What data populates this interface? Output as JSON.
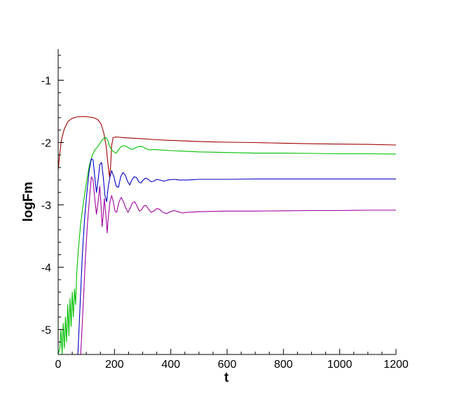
{
  "chart_data": {
    "type": "line",
    "xlabel": "t",
    "ylabel": "logFm",
    "xlim": [
      0,
      1200
    ],
    "ylim": [
      -5.4,
      -0.5
    ],
    "x_ticks": [
      0,
      200,
      400,
      600,
      800,
      1000,
      1200
    ],
    "x_tick_labels": [
      "0",
      "200",
      "400",
      "600",
      "800",
      "1000",
      "1200"
    ],
    "y_ticks": [
      -5,
      -4,
      -3,
      -2,
      -1
    ],
    "y_tick_labels": [
      "-5",
      "-4",
      "-3",
      "-2",
      "-1"
    ],
    "grid": false,
    "legend": "none",
    "series": [
      {
        "color": "#a00000",
        "points": [
          [
            0,
            -2.45
          ],
          [
            5,
            -2.2
          ],
          [
            12,
            -1.95
          ],
          [
            22,
            -1.78
          ],
          [
            35,
            -1.66
          ],
          [
            50,
            -1.61
          ],
          [
            65,
            -1.59
          ],
          [
            80,
            -1.585
          ],
          [
            95,
            -1.585
          ],
          [
            110,
            -1.59
          ],
          [
            125,
            -1.6
          ],
          [
            140,
            -1.63
          ],
          [
            152,
            -1.7
          ],
          [
            162,
            -1.85
          ],
          [
            170,
            -2.05
          ],
          [
            177,
            -2.35
          ],
          [
            182,
            -2.55
          ],
          [
            186,
            -2.4
          ],
          [
            190,
            -2.05
          ],
          [
            195,
            -1.92
          ],
          [
            205,
            -1.91
          ],
          [
            230,
            -1.92
          ],
          [
            260,
            -1.93
          ],
          [
            300,
            -1.94
          ],
          [
            350,
            -1.955
          ],
          [
            400,
            -1.965
          ],
          [
            450,
            -1.975
          ],
          [
            500,
            -1.985
          ],
          [
            550,
            -1.99
          ],
          [
            600,
            -1.995
          ],
          [
            700,
            -2.0
          ],
          [
            800,
            -2.01
          ],
          [
            900,
            -2.02
          ],
          [
            1000,
            -2.025
          ],
          [
            1100,
            -2.03
          ],
          [
            1200,
            -2.04
          ]
        ]
      },
      {
        "color": "#00c000",
        "points": [
          [
            0,
            -5.4
          ],
          [
            6,
            -5.3
          ],
          [
            10,
            -5.0
          ],
          [
            14,
            -5.4
          ],
          [
            18,
            -4.9
          ],
          [
            22,
            -5.3
          ],
          [
            26,
            -4.8
          ],
          [
            30,
            -5.2
          ],
          [
            34,
            -4.6
          ],
          [
            38,
            -5.1
          ],
          [
            42,
            -4.5
          ],
          [
            46,
            -4.95
          ],
          [
            50,
            -4.4
          ],
          [
            54,
            -4.8
          ],
          [
            58,
            -4.35
          ],
          [
            62,
            -4.6
          ],
          [
            66,
            -4.1
          ],
          [
            72,
            -3.7
          ],
          [
            80,
            -3.3
          ],
          [
            90,
            -2.95
          ],
          [
            100,
            -2.65
          ],
          [
            110,
            -2.38
          ],
          [
            120,
            -2.22
          ],
          [
            130,
            -2.12
          ],
          [
            140,
            -2.07
          ],
          [
            150,
            -2.0
          ],
          [
            160,
            -1.94
          ],
          [
            168,
            -1.92
          ],
          [
            175,
            -1.95
          ],
          [
            182,
            -2.05
          ],
          [
            190,
            -2.12
          ],
          [
            198,
            -2.15
          ],
          [
            206,
            -2.17
          ],
          [
            214,
            -2.12
          ],
          [
            222,
            -2.07
          ],
          [
            232,
            -2.05
          ],
          [
            242,
            -2.06
          ],
          [
            252,
            -2.09
          ],
          [
            262,
            -2.11
          ],
          [
            272,
            -2.09
          ],
          [
            282,
            -2.07
          ],
          [
            292,
            -2.06
          ],
          [
            302,
            -2.07
          ],
          [
            312,
            -2.1
          ],
          [
            325,
            -2.12
          ],
          [
            340,
            -2.11
          ],
          [
            360,
            -2.12
          ],
          [
            400,
            -2.13
          ],
          [
            450,
            -2.14
          ],
          [
            500,
            -2.15
          ],
          [
            600,
            -2.16
          ],
          [
            700,
            -2.17
          ],
          [
            800,
            -2.17
          ],
          [
            900,
            -2.175
          ],
          [
            1000,
            -2.18
          ],
          [
            1100,
            -2.18
          ],
          [
            1200,
            -2.185
          ]
        ]
      },
      {
        "color": "#0000c0",
        "points": [
          [
            70,
            -5.4
          ],
          [
            78,
            -4.6
          ],
          [
            86,
            -3.8
          ],
          [
            94,
            -3.2
          ],
          [
            102,
            -2.8
          ],
          [
            110,
            -2.45
          ],
          [
            118,
            -2.26
          ],
          [
            124,
            -2.28
          ],
          [
            130,
            -2.55
          ],
          [
            136,
            -2.8
          ],
          [
            142,
            -2.6
          ],
          [
            148,
            -2.35
          ],
          [
            154,
            -2.32
          ],
          [
            160,
            -2.55
          ],
          [
            166,
            -2.85
          ],
          [
            172,
            -2.95
          ],
          [
            178,
            -2.7
          ],
          [
            184,
            -2.55
          ],
          [
            190,
            -2.45
          ],
          [
            198,
            -2.55
          ],
          [
            206,
            -2.7
          ],
          [
            214,
            -2.72
          ],
          [
            222,
            -2.55
          ],
          [
            230,
            -2.48
          ],
          [
            238,
            -2.52
          ],
          [
            246,
            -2.62
          ],
          [
            254,
            -2.68
          ],
          [
            262,
            -2.6
          ],
          [
            270,
            -2.55
          ],
          [
            278,
            -2.56
          ],
          [
            286,
            -2.63
          ],
          [
            294,
            -2.65
          ],
          [
            302,
            -2.6
          ],
          [
            310,
            -2.57
          ],
          [
            320,
            -2.59
          ],
          [
            330,
            -2.63
          ],
          [
            340,
            -2.62
          ],
          [
            350,
            -2.59
          ],
          [
            360,
            -2.6
          ],
          [
            375,
            -2.62
          ],
          [
            390,
            -2.6
          ],
          [
            410,
            -2.59
          ],
          [
            430,
            -2.6
          ],
          [
            460,
            -2.6
          ],
          [
            500,
            -2.59
          ],
          [
            600,
            -2.59
          ],
          [
            700,
            -2.585
          ],
          [
            800,
            -2.585
          ],
          [
            900,
            -2.585
          ],
          [
            1000,
            -2.585
          ],
          [
            1100,
            -2.585
          ],
          [
            1200,
            -2.585
          ]
        ]
      },
      {
        "color": "#a000a0",
        "points": [
          [
            80,
            -5.4
          ],
          [
            88,
            -4.7
          ],
          [
            96,
            -3.9
          ],
          [
            104,
            -3.3
          ],
          [
            112,
            -2.85
          ],
          [
            118,
            -2.55
          ],
          [
            124,
            -2.6
          ],
          [
            130,
            -2.9
          ],
          [
            136,
            -3.15
          ],
          [
            142,
            -2.95
          ],
          [
            148,
            -2.7
          ],
          [
            152,
            -3.0
          ],
          [
            156,
            -3.35
          ],
          [
            160,
            -3.15
          ],
          [
            164,
            -2.9
          ],
          [
            170,
            -3.2
          ],
          [
            174,
            -3.45
          ],
          [
            178,
            -3.2
          ],
          [
            184,
            -2.95
          ],
          [
            190,
            -2.85
          ],
          [
            196,
            -2.95
          ],
          [
            202,
            -3.1
          ],
          [
            208,
            -3.12
          ],
          [
            216,
            -2.95
          ],
          [
            224,
            -2.88
          ],
          [
            232,
            -2.95
          ],
          [
            240,
            -3.05
          ],
          [
            248,
            -3.12
          ],
          [
            256,
            -3.05
          ],
          [
            264,
            -2.97
          ],
          [
            272,
            -2.95
          ],
          [
            280,
            -3.02
          ],
          [
            288,
            -3.1
          ],
          [
            296,
            -3.08
          ],
          [
            304,
            -3.02
          ],
          [
            312,
            -3.01
          ],
          [
            320,
            -3.06
          ],
          [
            330,
            -3.12
          ],
          [
            340,
            -3.1
          ],
          [
            350,
            -3.06
          ],
          [
            360,
            -3.07
          ],
          [
            372,
            -3.12
          ],
          [
            385,
            -3.14
          ],
          [
            398,
            -3.11
          ],
          [
            412,
            -3.09
          ],
          [
            425,
            -3.11
          ],
          [
            440,
            -3.13
          ],
          [
            460,
            -3.12
          ],
          [
            500,
            -3.11
          ],
          [
            600,
            -3.1
          ],
          [
            700,
            -3.1
          ],
          [
            800,
            -3.095
          ],
          [
            900,
            -3.09
          ],
          [
            1000,
            -3.09
          ],
          [
            1100,
            -3.085
          ],
          [
            1200,
            -3.085
          ]
        ]
      }
    ]
  }
}
